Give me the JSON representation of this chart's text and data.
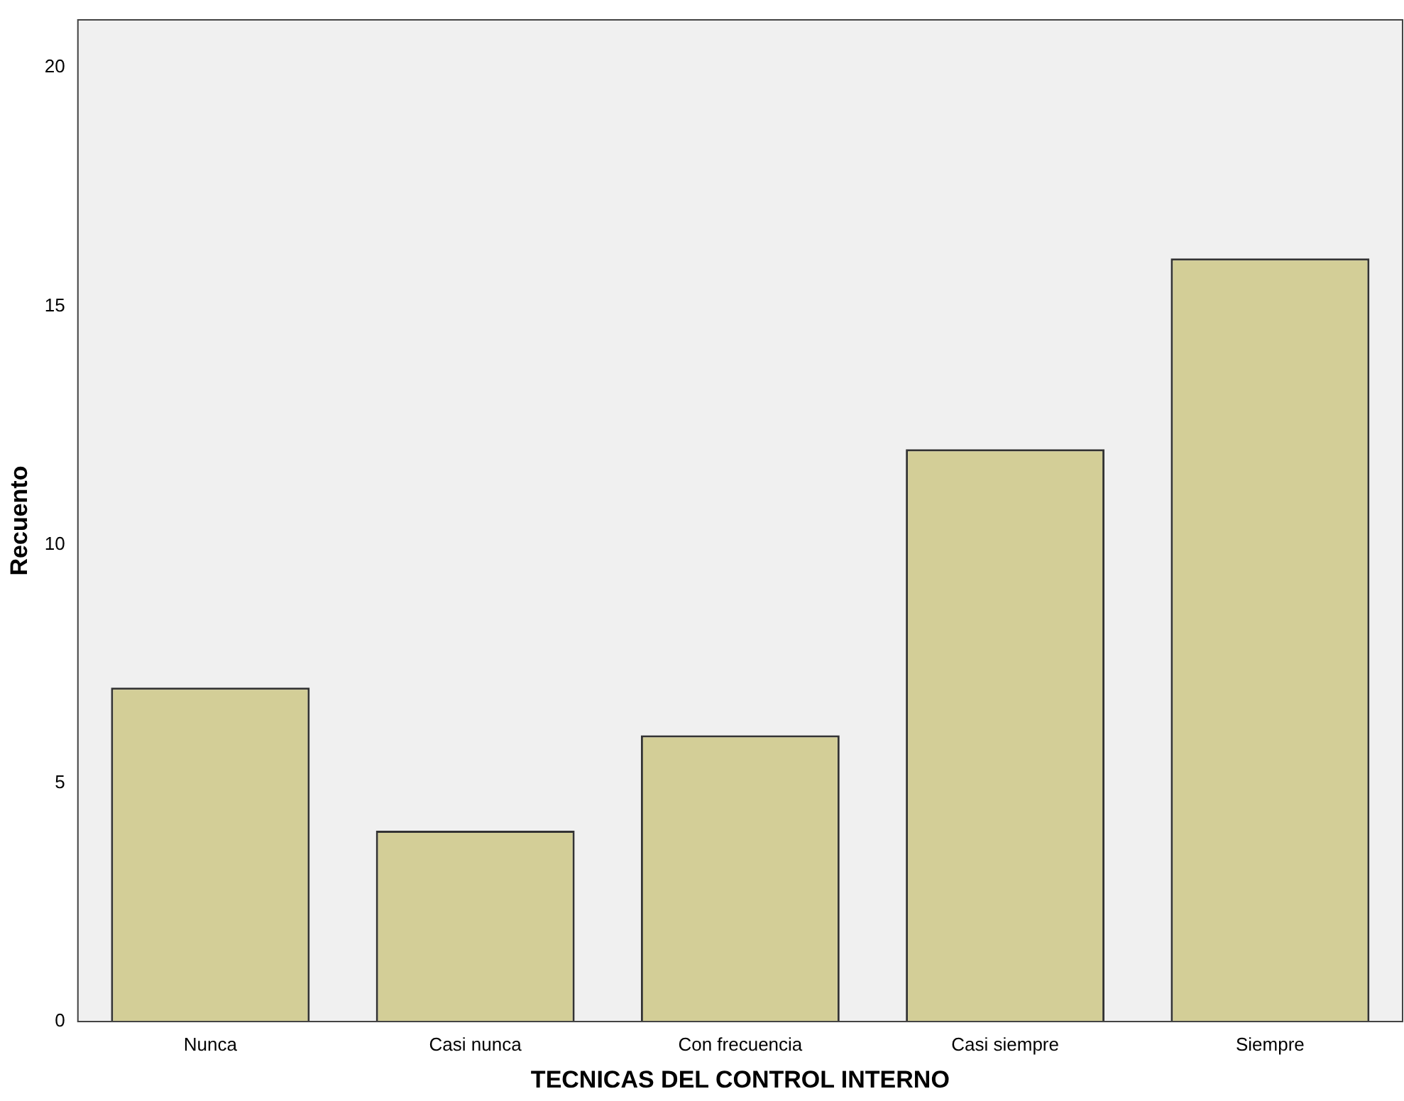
{
  "chart_data": {
    "type": "bar",
    "xlabel": "TECNICAS DEL CONTROL INTERNO",
    "ylabel": "Recuento",
    "categories": [
      "Nunca",
      "Casi nunca",
      "Con frecuencia",
      "Casi siempre",
      "Siempre"
    ],
    "values": [
      7,
      4,
      6,
      12,
      16
    ],
    "color": "#d3ce97",
    "ylim": [
      0,
      21
    ],
    "yticks": [
      0,
      5,
      10,
      15,
      20
    ],
    "grid": false,
    "legend": false
  }
}
